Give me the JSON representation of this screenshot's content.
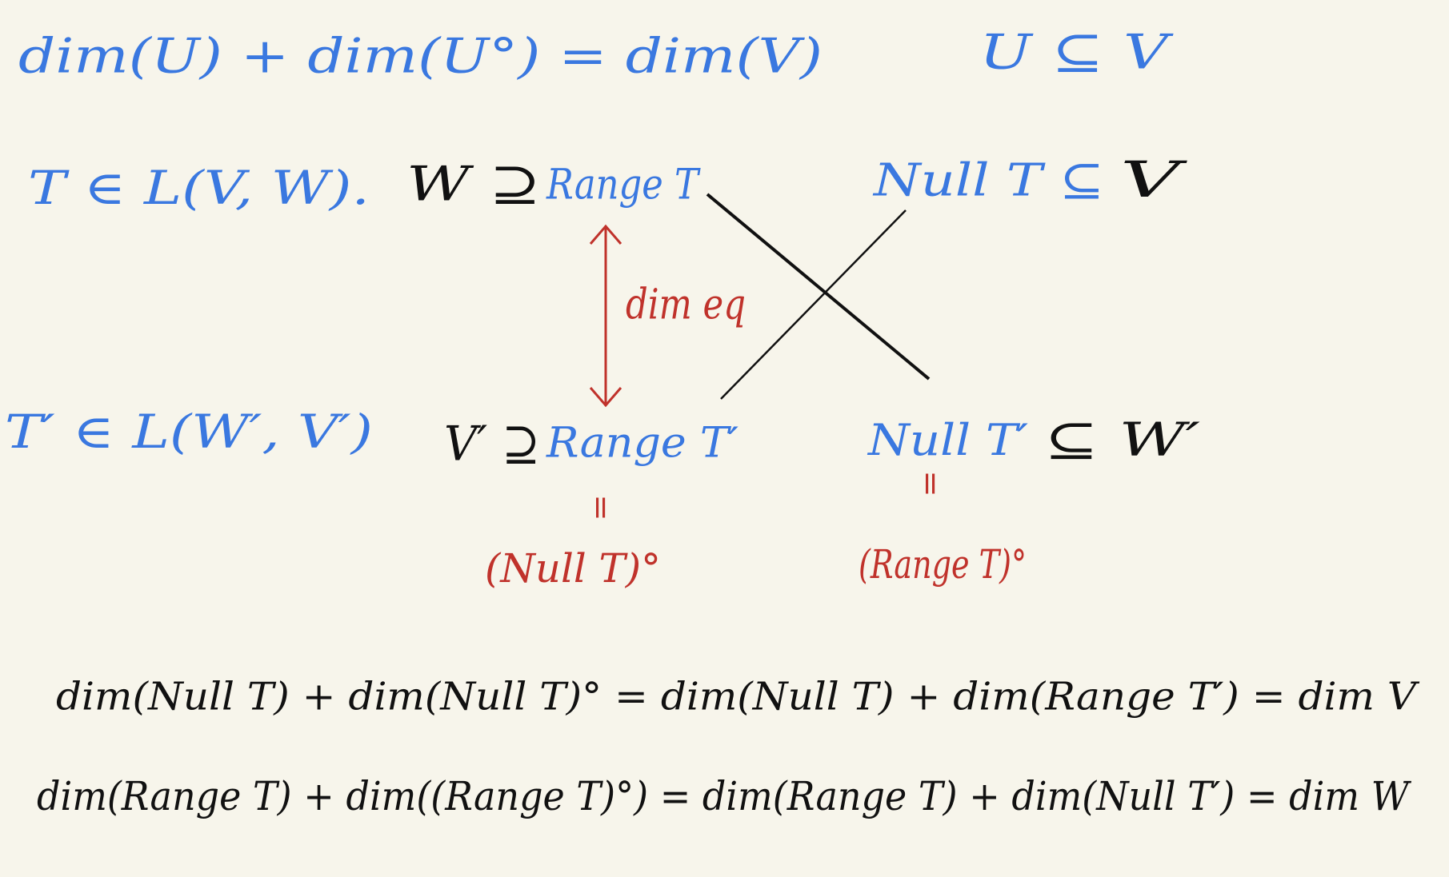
{
  "notes": {
    "line1": {
      "formula": "dim(U) + dim(U°) = dim(V)",
      "condition": "U ⊆ V"
    },
    "row_T": {
      "map": "T ∈ L(V, W).",
      "codomain": "W ⊇",
      "range": "Range T",
      "null": "Null T ⊆",
      "domain": "V"
    },
    "arrow_label": "dim eq",
    "row_T_dual": {
      "map": "T′ ∈ L(W′, V′)",
      "codomain": "V′ ⊇",
      "range": "Range T′",
      "null": "Null T′",
      "domain": "⊆ W′"
    },
    "equal_sign": "=",
    "range_dual_equals": "(Null T)°",
    "null_dual_equals": "(Range T)°",
    "equation_V": "dim(Null T) + dim(Null T)° = dim(Null T) + dim(Range T′) = dim V",
    "equation_W": "dim(Range T) + dim((Range T)°) = dim(Range T) + dim(Null T′) = dim W"
  }
}
